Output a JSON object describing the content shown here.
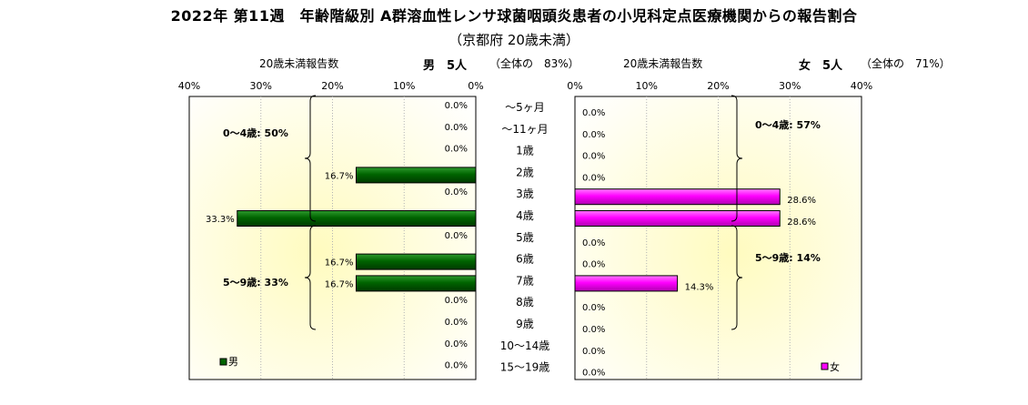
{
  "title": "2022年 第11週　年齢階級別 A群溶血性レンサ球菌咽頭炎患者の小児科定点医療機関からの報告割合",
  "subtitle": "（京都府 20歳未満）",
  "left_panel": {
    "header_label": "20歳未満報告数",
    "sex_summary": "男　5人",
    "share": "（全体の　83%）",
    "legend": "男",
    "brace_labels": [
      "0～4歳: 50%",
      "5～9歳: 33%"
    ],
    "color": "#006400"
  },
  "right_panel": {
    "header_label": "20歳未満報告数",
    "sex_summary": "女　5人",
    "share": "（全体の　71%）",
    "legend": "女",
    "brace_labels": [
      "0～4歳: 57%",
      "5～9歳: 14%"
    ],
    "color": "#ff00ff"
  },
  "chart_data": {
    "type": "bar",
    "orientation": "horizontal",
    "layout": "population-pyramid",
    "title": "2022年 第11週　年齢階級別 A群溶血性レンサ球菌咽頭炎患者の小児科定点医療機関からの報告割合",
    "subtitle": "（京都府 20歳未満）",
    "categories": [
      "～5ヶ月",
      "～11ヶ月",
      "1歳",
      "2歳",
      "3歳",
      "4歳",
      "5歳",
      "6歳",
      "7歳",
      "8歳",
      "9歳",
      "10～14歳",
      "15～19歳"
    ],
    "series": [
      {
        "name": "男",
        "values": [
          0,
          0,
          0,
          16.7,
          0,
          33.3,
          0,
          16.7,
          16.7,
          0,
          0,
          0,
          0
        ],
        "color": "#006400"
      },
      {
        "name": "女",
        "values": [
          0,
          0,
          0,
          0,
          28.6,
          28.6,
          0,
          0,
          14.3,
          0,
          0,
          0,
          0
        ],
        "color": "#ff00ff"
      }
    ],
    "xlim": [
      0,
      40
    ],
    "tick_labels": [
      "0%",
      "10%",
      "20%",
      "30%",
      "40%"
    ],
    "legend_position": "bottom-outer",
    "grid": true
  }
}
